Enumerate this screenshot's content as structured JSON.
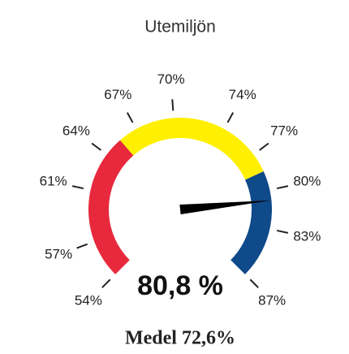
{
  "chart_data": {
    "type": "gauge",
    "title": "Utemiljön",
    "value": 80.8,
    "value_label": "80,8 %",
    "ylim": [
      54,
      87
    ],
    "yticks": [
      {
        "value": 54,
        "label": "54%"
      },
      {
        "value": 57,
        "label": "57%"
      },
      {
        "value": 61,
        "label": "61%"
      },
      {
        "value": 64,
        "label": "64%"
      },
      {
        "value": 67,
        "label": "67%"
      },
      {
        "value": 70,
        "label": "70%"
      },
      {
        "value": 74,
        "label": "74%"
      },
      {
        "value": 77,
        "label": "77%"
      },
      {
        "value": 80,
        "label": "80%"
      },
      {
        "value": 83,
        "label": "83%"
      },
      {
        "value": 87,
        "label": "87%"
      }
    ],
    "bands": [
      {
        "from": 54,
        "to": 65.5,
        "color": "#e8283c"
      },
      {
        "from": 65.5,
        "to": 78.5,
        "color": "#ffef00"
      },
      {
        "from": 78.5,
        "to": 87,
        "color": "#0f4a8a"
      }
    ],
    "needle_color": "#000000",
    "annotation": "Medel 72,6%"
  }
}
